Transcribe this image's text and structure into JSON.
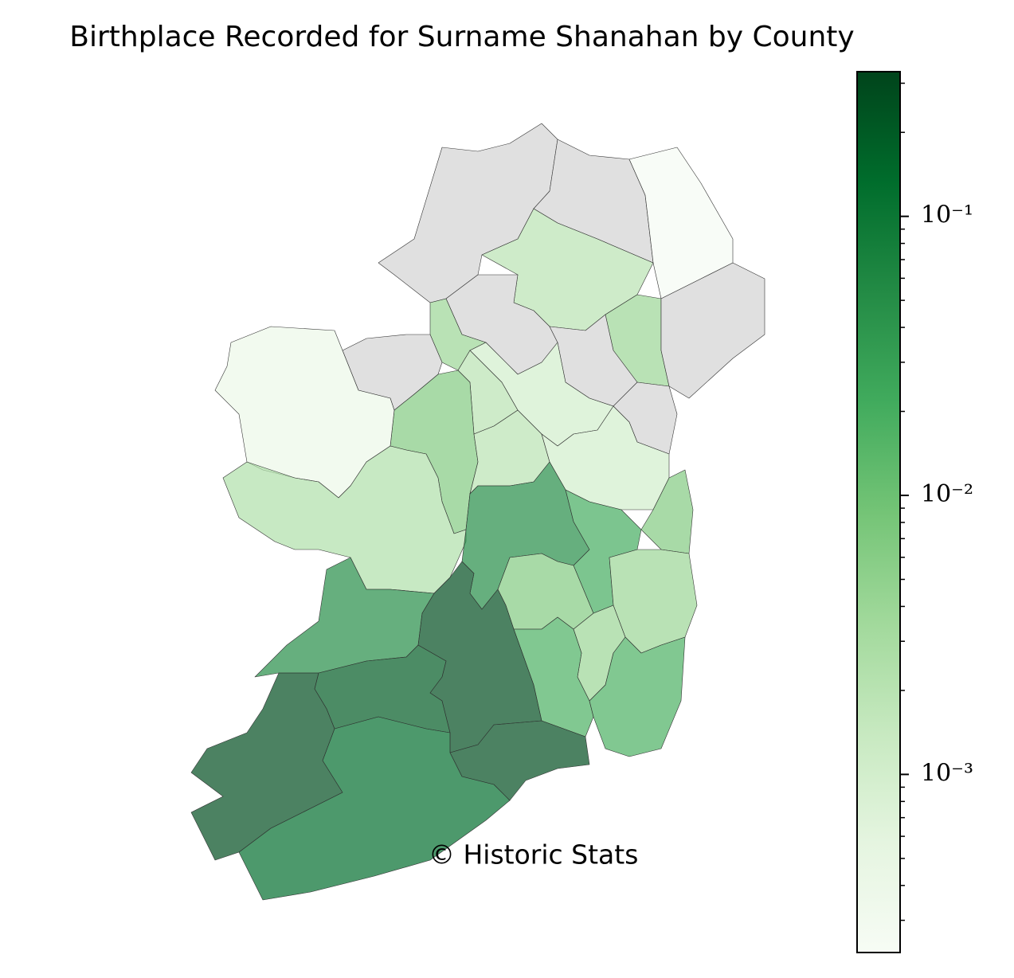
{
  "chart_data": {
    "type": "choropleth",
    "title": "Birthplace Recorded for Surname Shanahan by County",
    "annotation": "© Historic Stats",
    "values": [
      null,
      null,
      0.00025,
      0.002,
      0.004,
      null,
      null,
      null,
      null,
      0.004,
      null,
      0.001,
      0.002,
      0.0065,
      0.0004,
      0.0025,
      0.002,
      0.001,
      0.0065,
      0.05,
      0.02,
      0.0065,
      0.004,
      0.004,
      0.018,
      0.018,
      0.05,
      0.27,
      0.2,
      0.27,
      0.13,
      0.27
    ],
    "cmap": [
      "#f7fcf5",
      "#e5f5e0",
      "#c7e9c0",
      "#a1d99b",
      "#74c476",
      "#41ab5d",
      "#238b45",
      "#006d2c",
      "#00441b"
    ],
    "alpha": 0.7,
    "missing_color": "#e0e0e0",
    "log_scale": true,
    "ylim": [
      0.00023,
      0.33
    ],
    "yticks": [
      {
        "value": 0.1,
        "label": "10⁻¹"
      },
      {
        "value": 0.01,
        "label": "10⁻²"
      },
      {
        "value": 0.001,
        "label": "10⁻³"
      }
    ]
  }
}
